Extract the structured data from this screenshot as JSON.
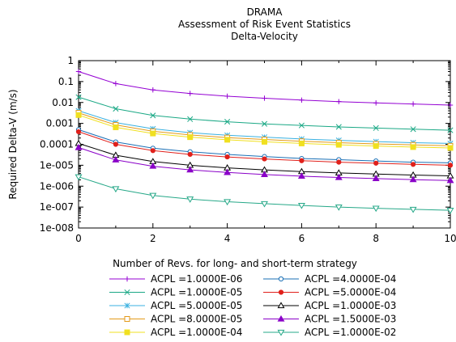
{
  "header": {
    "title": "DRAMA",
    "subtitle": "Assessment of Risk Event Statistics",
    "subtitle2": "Delta-Velocity"
  },
  "chart_data": {
    "type": "line",
    "title": "DRAMA",
    "subtitle": "Assessment of Risk Event Statistics",
    "subtitle2": "Delta-Velocity",
    "xlabel": "Number of Revs. for long- and short-term strategy",
    "ylabel": "Required Delta-V (m/s)",
    "xlim": [
      0,
      10
    ],
    "ylim": [
      1e-08,
      1
    ],
    "yscale": "log",
    "grid": false,
    "legend_position": "bottom",
    "x_ticks": [
      "0",
      "2",
      "4",
      "6",
      "8",
      "10"
    ],
    "y_ticks": [
      "1e-008",
      "1e-007",
      "1e-006",
      "1e-005",
      "0.0001",
      "0.001",
      "0.01",
      "0.1",
      "1"
    ],
    "x": [
      0,
      1,
      2,
      3,
      4,
      5,
      6,
      7,
      8,
      9,
      10
    ],
    "series": [
      {
        "name": "ACPL =1.0000E-06",
        "color": "#9400d3",
        "marker": "plus",
        "values": [
          0.3,
          0.08,
          0.04,
          0.027,
          0.02,
          0.016,
          0.013,
          0.011,
          0.0095,
          0.0085,
          0.0075
        ]
      },
      {
        "name": "ACPL =4.0000E-04",
        "color": "#1a6fb5",
        "marker": "circle",
        "values": [
          0.0005,
          0.00013,
          6.5e-05,
          4.4e-05,
          3.3e-05,
          2.6e-05,
          2.1e-05,
          1.85e-05,
          1.6e-05,
          1.4e-05,
          1.3e-05
        ]
      },
      {
        "name": "ACPL =1.0000E-05",
        "color": "#1aa885",
        "marker": "x",
        "values": [
          0.018,
          0.005,
          0.0024,
          0.0016,
          0.0012,
          0.00095,
          0.0008,
          0.00068,
          0.0006,
          0.00053,
          0.00047
        ]
      },
      {
        "name": "ACPL =5.0000E-04",
        "color": "#e0201b",
        "marker": "dot",
        "values": [
          0.0004,
          0.0001,
          5e-05,
          3.3e-05,
          2.5e-05,
          2e-05,
          1.65e-05,
          1.4e-05,
          1.25e-05,
          1.1e-05,
          1e-05
        ]
      },
      {
        "name": "ACPL =5.0000E-05",
        "color": "#39b0e0",
        "marker": "star",
        "values": [
          0.004,
          0.0011,
          0.00055,
          0.00036,
          0.00027,
          0.00022,
          0.00018,
          0.000155,
          0.000135,
          0.00012,
          0.00011
        ]
      },
      {
        "name": "ACPL =1.0000E-03",
        "color": "#000000",
        "marker": "triangle",
        "values": [
          0.00011,
          3e-05,
          1.5e-05,
          1e-05,
          7.5e-06,
          6e-06,
          5e-06,
          4.3e-06,
          3.8e-06,
          3.4e-06,
          3.1e-06
        ]
      },
      {
        "name": "ACPL =8.0000E-05",
        "color": "#e39a1a",
        "marker": "square",
        "values": [
          0.0032,
          0.00085,
          0.00042,
          0.00028,
          0.00021,
          0.00017,
          0.00014,
          0.00012,
          0.000105,
          9.4e-05,
          8.5e-05
        ]
      },
      {
        "name": "ACPL =1.5000E-03",
        "color": "#8a00c8",
        "marker": "triangle-filled",
        "values": [
          7e-05,
          1.8e-05,
          9e-06,
          6e-06,
          4.5e-06,
          3.6e-06,
          3e-06,
          2.6e-06,
          2.3e-06,
          2.05e-06,
          1.85e-06
        ]
      },
      {
        "name": "ACPL =1.0000E-04",
        "color": "#f0e020",
        "marker": "square-filled",
        "values": [
          0.0025,
          0.00065,
          0.00033,
          0.00022,
          0.000165,
          0.000132,
          0.00011,
          9.5e-05,
          8.3e-05,
          7.4e-05,
          6.7e-05
        ]
      },
      {
        "name": "ACPL =1.0000E-02",
        "color": "#26a888",
        "marker": "triangle-down",
        "values": [
          2.8e-06,
          7.5e-07,
          3.6e-07,
          2.4e-07,
          1.8e-07,
          1.45e-07,
          1.2e-07,
          1e-07,
          8.8e-08,
          7.8e-08,
          7e-08
        ]
      }
    ]
  }
}
